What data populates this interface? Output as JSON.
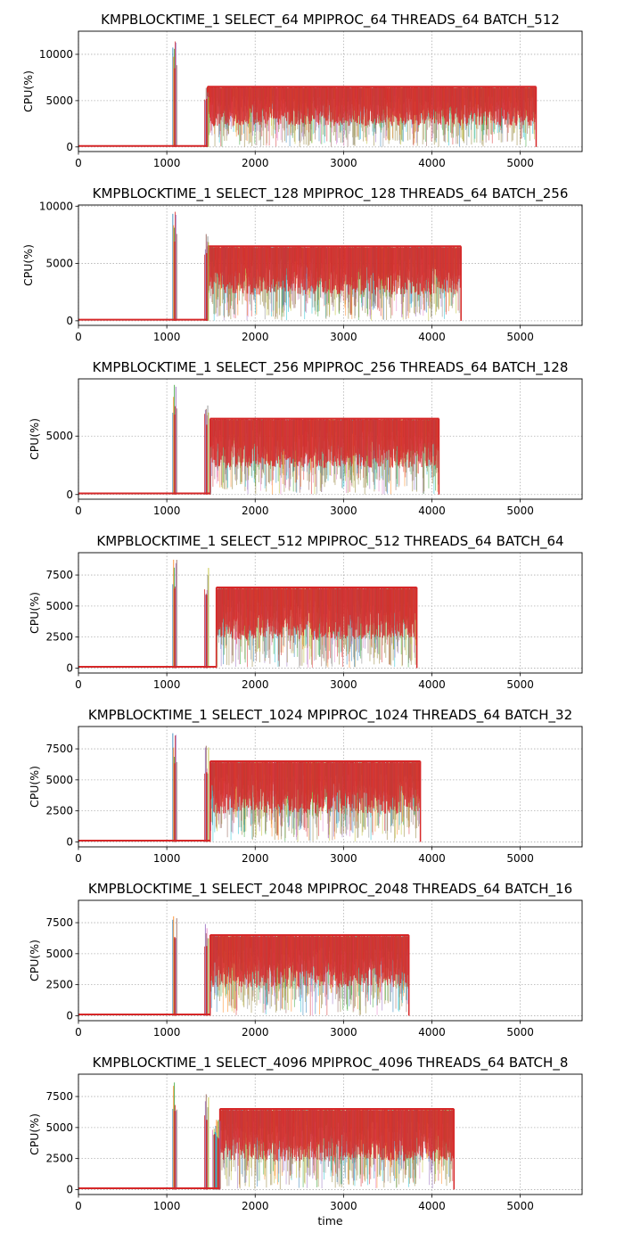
{
  "chart_data": [
    {
      "type": "line",
      "title": "KMPBLOCKTIME_1 SELECT_64 MPIPROC_64 THREADS_64 BATCH_512",
      "ylabel": "CPU(%)",
      "xlim": [
        0,
        5700
      ],
      "ylim": [
        -500,
        12500
      ],
      "xticks": [
        0,
        1000,
        2000,
        3000,
        4000,
        5000
      ],
      "yticks": [
        0,
        5000,
        10000
      ],
      "spikes": [
        {
          "x": 1090,
          "y": 11800
        },
        {
          "x": 1450,
          "y": 7200
        }
      ],
      "band": {
        "start": 1460,
        "end": 5180,
        "top": 6500,
        "dense_lower": 0
      },
      "baseline": 100,
      "grid": true
    },
    {
      "type": "line",
      "title": "KMPBLOCKTIME_1 SELECT_128 MPIPROC_128 THREADS_64 BATCH_256",
      "ylabel": "CPU(%)",
      "xlim": [
        0,
        5700
      ],
      "ylim": [
        -400,
        10100
      ],
      "xticks": [
        0,
        1000,
        2000,
        3000,
        4000,
        5000
      ],
      "yticks": [
        0,
        5000,
        10000
      ],
      "spikes": [
        {
          "x": 1090,
          "y": 9600
        },
        {
          "x": 1450,
          "y": 8200
        }
      ],
      "band": {
        "start": 1460,
        "end": 4330,
        "top": 6500,
        "dense_lower": 0
      },
      "baseline": 100,
      "grid": true
    },
    {
      "type": "line",
      "title": "KMPBLOCKTIME_1 SELECT_256 MPIPROC_256 THREADS_64 BATCH_128",
      "ylabel": "CPU(%)",
      "xlim": [
        0,
        5700
      ],
      "ylim": [
        -400,
        9900
      ],
      "xticks": [
        0,
        1000,
        2000,
        3000,
        4000,
        5000
      ],
      "yticks": [
        0,
        5000
      ],
      "spikes": [
        {
          "x": 1090,
          "y": 9500
        },
        {
          "x": 1450,
          "y": 8300
        }
      ],
      "band": {
        "start": 1490,
        "end": 4080,
        "top": 6500,
        "dense_lower": 0
      },
      "baseline": 100,
      "grid": true
    },
    {
      "type": "line",
      "title": "KMPBLOCKTIME_1 SELECT_512 MPIPROC_512 THREADS_64 BATCH_64",
      "ylabel": "CPU(%)",
      "xlim": [
        0,
        5700
      ],
      "ylim": [
        -400,
        9300
      ],
      "xticks": [
        0,
        1000,
        2000,
        3000,
        4000,
        5000
      ],
      "yticks": [
        0,
        2500,
        5000,
        7500
      ],
      "spikes": [
        {
          "x": 1090,
          "y": 8900
        },
        {
          "x": 1450,
          "y": 8200
        }
      ],
      "band": {
        "start": 1560,
        "end": 3830,
        "top": 6500,
        "dense_lower": 0
      },
      "baseline": 100,
      "grid": true
    },
    {
      "type": "line",
      "title": "KMPBLOCKTIME_1 SELECT_1024 MPIPROC_1024 THREADS_64 BATCH_32",
      "ylabel": "CPU(%)",
      "xlim": [
        0,
        5700
      ],
      "ylim": [
        -400,
        9300
      ],
      "xticks": [
        0,
        1000,
        2000,
        3000,
        4000,
        5000
      ],
      "yticks": [
        0,
        2500,
        5000,
        7500
      ],
      "spikes": [
        {
          "x": 1090,
          "y": 8800
        },
        {
          "x": 1450,
          "y": 7800
        }
      ],
      "band": {
        "start": 1490,
        "end": 3870,
        "top": 6500,
        "dense_lower": 0
      },
      "baseline": 100,
      "grid": true
    },
    {
      "type": "line",
      "title": "KMPBLOCKTIME_1 SELECT_2048 MPIPROC_2048 THREADS_64 BATCH_16",
      "ylabel": "CPU(%)",
      "xlim": [
        0,
        5700
      ],
      "ylim": [
        -400,
        9300
      ],
      "xticks": [
        0,
        1000,
        2000,
        3000,
        4000,
        5000
      ],
      "yticks": [
        0,
        2500,
        5000,
        7500
      ],
      "spikes": [
        {
          "x": 1090,
          "y": 8800
        },
        {
          "x": 1450,
          "y": 7800
        }
      ],
      "band": {
        "start": 1490,
        "end": 3740,
        "top": 6500,
        "dense_lower": 0
      },
      "baseline": 100,
      "grid": true
    },
    {
      "type": "line",
      "title": "KMPBLOCKTIME_1 SELECT_4096 MPIPROC_4096 THREADS_64 BATCH_8",
      "ylabel": "CPU(%)",
      "xlabel": "time",
      "xlim": [
        0,
        5700
      ],
      "ylim": [
        -400,
        9300
      ],
      "xticks": [
        0,
        1000,
        2000,
        3000,
        4000,
        5000
      ],
      "yticks": [
        0,
        2500,
        5000,
        7500
      ],
      "spikes": [
        {
          "x": 1090,
          "y": 8800
        },
        {
          "x": 1450,
          "y": 7800
        },
        {
          "x": 1540,
          "y": 6200
        },
        {
          "x": 1580,
          "y": 5800
        }
      ],
      "band": {
        "start": 1600,
        "end": 4250,
        "top": 6500,
        "dense_lower": 0
      },
      "baseline": 100,
      "grid": true
    }
  ],
  "colors": {
    "series": [
      "#1f77b4",
      "#ff7f0e",
      "#2ca02c",
      "#d62728",
      "#9467bd",
      "#8c564b",
      "#e377c2",
      "#7f7f7f",
      "#bcbd22",
      "#17becf"
    ],
    "dominant": "#d62728",
    "olive": "#8c7a2a",
    "green": "#2ca02c"
  }
}
